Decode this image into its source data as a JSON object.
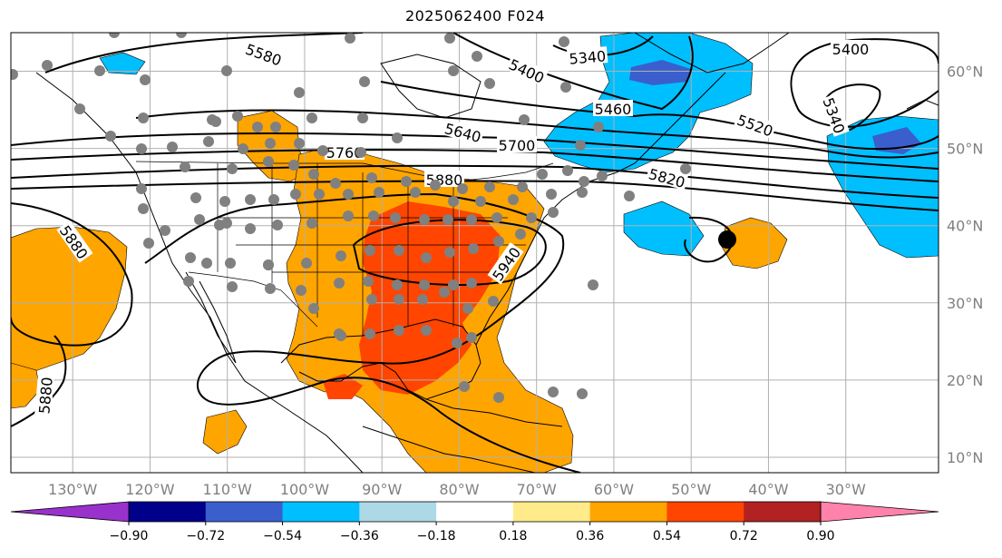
{
  "title": "2025062400 F024",
  "map": {
    "projection": "PlateCarree",
    "extent": {
      "lon_min": -138,
      "lon_max": -18,
      "lat_min": 8,
      "lat_max": 65
    },
    "gridlines": true,
    "lon_ticks": [
      {
        "value": -130,
        "label": "130°W"
      },
      {
        "value": -120,
        "label": "120°W"
      },
      {
        "value": -110,
        "label": "110°W"
      },
      {
        "value": -100,
        "label": "100°W"
      },
      {
        "value": -90,
        "label": "90°W"
      },
      {
        "value": -80,
        "label": "80°W"
      },
      {
        "value": -70,
        "label": "70°W"
      },
      {
        "value": -60,
        "label": "60°W"
      },
      {
        "value": -50,
        "label": "50°W"
      },
      {
        "value": -40,
        "label": "40°W"
      },
      {
        "value": -30,
        "label": "30°W"
      }
    ],
    "lat_ticks": [
      {
        "value": 10,
        "label": "10°N"
      },
      {
        "value": 20,
        "label": "20°N"
      },
      {
        "value": 30,
        "label": "30°N"
      },
      {
        "value": 40,
        "label": "40°N"
      },
      {
        "value": 50,
        "label": "50°N"
      },
      {
        "value": 60,
        "label": "60°N"
      }
    ],
    "contour_labels": [
      "5580",
      "5400",
      "5340",
      "5460",
      "5520",
      "5640",
      "5700",
      "5760",
      "5880",
      "5820",
      "5940",
      "5880",
      "5880",
      "5400",
      "5340"
    ]
  },
  "colorbar": {
    "extend": "both",
    "ticks": [
      "−0.90",
      "−0.72",
      "−0.54",
      "−0.36",
      "−0.18",
      "0.18",
      "0.36",
      "0.54",
      "0.72",
      "0.90"
    ],
    "colors": [
      "#9932cc",
      "#00008b",
      "#3a5fcd",
      "#00bfff",
      "#add8e6",
      "#ffffff",
      "#ffeb8a",
      "#ffa500",
      "#ff4500",
      "#b22222",
      "#ff82ab"
    ],
    "over_color": "#ff82ab",
    "under_color": "#9932cc"
  },
  "colors": {
    "station_dot": "#808080",
    "highlight_dot": "#000000"
  }
}
